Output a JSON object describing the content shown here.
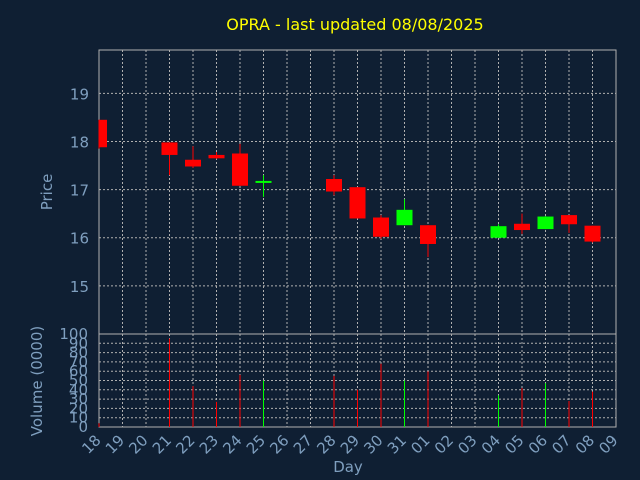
{
  "title": "OPRA - last updated 08/08/2025",
  "colors": {
    "background": "#0f1f33",
    "title": "#ffff00",
    "axis_text": "#7f9fbf",
    "grid": "#b0b0b0",
    "up": "#00ff00",
    "down": "#ff0000"
  },
  "chart_data": [
    {
      "type": "candlestick",
      "ylabel": "Price",
      "ylim": [
        14.0,
        19.9
      ],
      "yticks": [
        15,
        16,
        17,
        18,
        19
      ],
      "x_tick_labels": [
        "18",
        "19",
        "20",
        "21",
        "22",
        "23",
        "24",
        "25",
        "26",
        "27",
        "28",
        "29",
        "30",
        "31",
        "01",
        "02",
        "03",
        "04",
        "05",
        "06",
        "07",
        "08",
        "09"
      ],
      "grid": true,
      "candles": [
        {
          "day": "18",
          "open": 18.45,
          "high": 18.45,
          "low": 17.85,
          "close": 17.88
        },
        {
          "day": "21",
          "open": 17.98,
          "high": 17.98,
          "low": 17.3,
          "close": 17.72
        },
        {
          "day": "22",
          "open": 17.62,
          "high": 17.9,
          "low": 17.45,
          "close": 17.48
        },
        {
          "day": "23",
          "open": 17.72,
          "high": 17.78,
          "low": 17.64,
          "close": 17.65
        },
        {
          "day": "24",
          "open": 17.75,
          "high": 17.95,
          "low": 17.08,
          "close": 17.08
        },
        {
          "day": "25",
          "open": 17.16,
          "high": 17.3,
          "low": 16.85,
          "close": 17.18
        },
        {
          "day": "28",
          "open": 17.22,
          "high": 17.3,
          "low": 16.88,
          "close": 16.96
        },
        {
          "day": "29",
          "open": 17.05,
          "high": 17.05,
          "low": 16.4,
          "close": 16.4
        },
        {
          "day": "30",
          "open": 16.42,
          "high": 16.47,
          "low": 15.98,
          "close": 16.02
        },
        {
          "day": "31",
          "open": 16.26,
          "high": 16.8,
          "low": 16.26,
          "close": 16.58
        },
        {
          "day": "01",
          "open": 16.26,
          "high": 16.26,
          "low": 15.6,
          "close": 15.87
        },
        {
          "day": "04",
          "open": 16.0,
          "high": 16.28,
          "low": 16.0,
          "close": 16.24
        },
        {
          "day": "05",
          "open": 16.29,
          "high": 16.5,
          "low": 16.08,
          "close": 16.16
        },
        {
          "day": "06",
          "open": 16.18,
          "high": 16.45,
          "low": 16.18,
          "close": 16.44
        },
        {
          "day": "07",
          "open": 16.47,
          "high": 16.47,
          "low": 16.1,
          "close": 16.28
        },
        {
          "day": "08",
          "open": 16.25,
          "high": 16.25,
          "low": 15.9,
          "close": 15.92
        }
      ]
    },
    {
      "type": "bar",
      "xlabel": "Day",
      "ylabel": "Volume (0000)",
      "ylim": [
        0,
        100
      ],
      "yticks": [
        0,
        10,
        20,
        30,
        40,
        50,
        60,
        70,
        80,
        90,
        100
      ],
      "grid": true,
      "bars": [
        {
          "day": "18",
          "value": 4,
          "direction": "down"
        },
        {
          "day": "21",
          "value": 95,
          "direction": "down"
        },
        {
          "day": "22",
          "value": 44,
          "direction": "down"
        },
        {
          "day": "23",
          "value": 27,
          "direction": "down"
        },
        {
          "day": "24",
          "value": 56,
          "direction": "down"
        },
        {
          "day": "25",
          "value": 50,
          "direction": "up"
        },
        {
          "day": "28",
          "value": 55,
          "direction": "down"
        },
        {
          "day": "29",
          "value": 40,
          "direction": "down"
        },
        {
          "day": "30",
          "value": 68,
          "direction": "down"
        },
        {
          "day": "31",
          "value": 50,
          "direction": "up"
        },
        {
          "day": "01",
          "value": 60,
          "direction": "down"
        },
        {
          "day": "04",
          "value": 34,
          "direction": "up"
        },
        {
          "day": "05",
          "value": 42,
          "direction": "down"
        },
        {
          "day": "06",
          "value": 47,
          "direction": "up"
        },
        {
          "day": "07",
          "value": 28,
          "direction": "down"
        },
        {
          "day": "08",
          "value": 38,
          "direction": "down"
        }
      ]
    }
  ]
}
